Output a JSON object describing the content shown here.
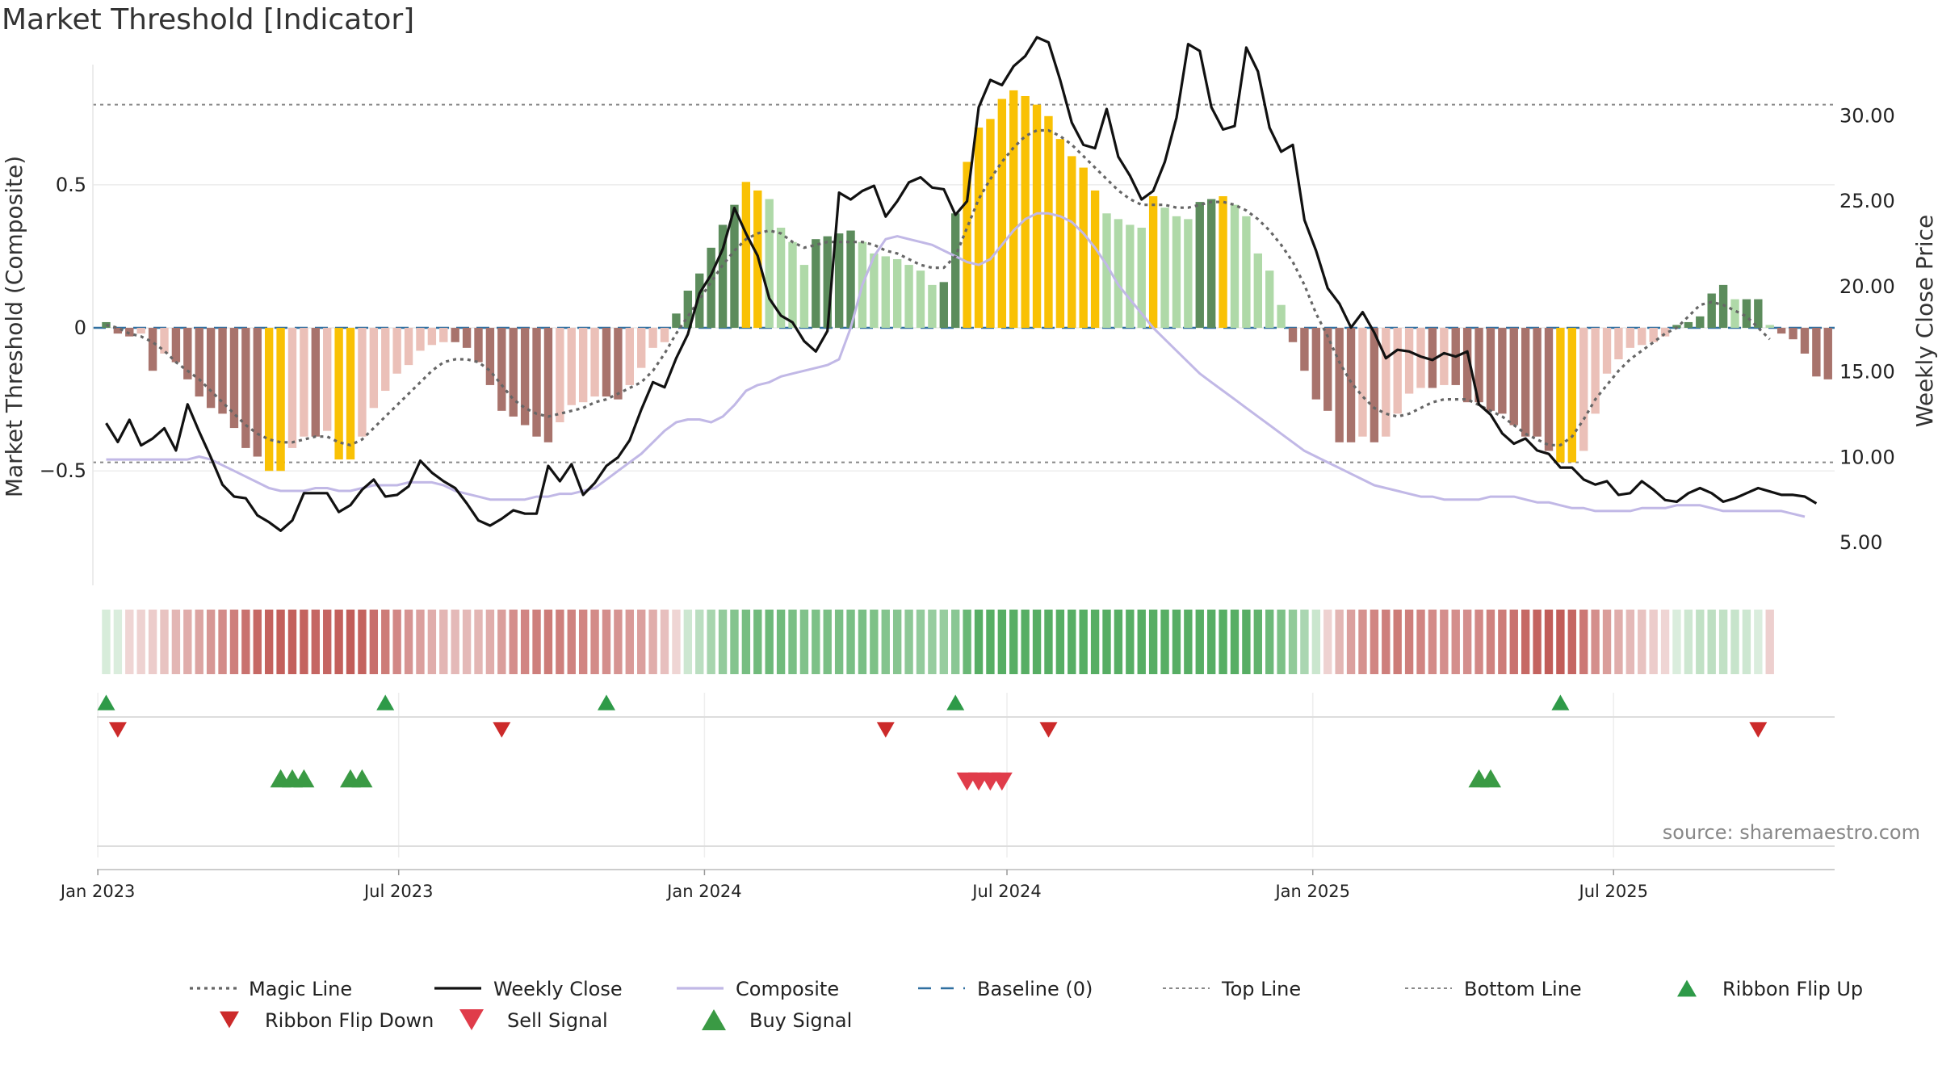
{
  "chart_data": {
    "type": "bar",
    "title": "Market Threshold [Indicator]",
    "ylabel_left": "Market Threshold (Composite)",
    "ylabel_right": "Weekly Close Price",
    "x_start": "2023-01-06",
    "x_step_days": 7,
    "ylim_left": [
      -0.9,
      0.92
    ],
    "ylim_right": [
      2.5,
      33
    ],
    "left_ticks": [
      0.5,
      0,
      -0.5
    ],
    "left_tick_labels": [
      "0.5",
      "0",
      "−0.5"
    ],
    "right_ticks": [
      30,
      25,
      20,
      15,
      10,
      5
    ],
    "right_tick_labels": [
      "30.00",
      "25.00",
      "20.00",
      "15.00",
      "10.00",
      "5.00"
    ],
    "x_ticks": [
      {
        "date": "2023-01-01",
        "label": "Jan 2023"
      },
      {
        "date": "2023-07-01",
        "label": "Jul 2023"
      },
      {
        "date": "2024-01-01",
        "label": "Jan 2024"
      },
      {
        "date": "2024-07-01",
        "label": "Jul 2024"
      },
      {
        "date": "2025-01-01",
        "label": "Jan 2025"
      },
      {
        "date": "2025-07-01",
        "label": "Jul 2025"
      }
    ],
    "reference_lines": {
      "top": 0.78,
      "bottom": -0.47,
      "baseline": 0
    },
    "histogram": [
      0.02,
      -0.02,
      -0.03,
      -0.02,
      -0.15,
      -0.09,
      -0.12,
      -0.18,
      -0.24,
      -0.28,
      -0.3,
      -0.35,
      -0.42,
      -0.45,
      -0.5,
      -0.5,
      -0.42,
      -0.38,
      -0.38,
      -0.36,
      -0.46,
      -0.46,
      -0.38,
      -0.28,
      -0.22,
      -0.16,
      -0.13,
      -0.08,
      -0.06,
      -0.05,
      -0.05,
      -0.07,
      -0.12,
      -0.2,
      -0.29,
      -0.31,
      -0.34,
      -0.38,
      -0.4,
      -0.33,
      -0.27,
      -0.26,
      -0.24,
      -0.24,
      -0.25,
      -0.2,
      -0.14,
      -0.07,
      -0.05,
      0.05,
      0.13,
      0.19,
      0.28,
      0.36,
      0.43,
      0.51,
      0.48,
      0.45,
      0.35,
      0.3,
      0.22,
      0.31,
      0.32,
      0.33,
      0.34,
      0.3,
      0.26,
      0.25,
      0.24,
      0.22,
      0.2,
      0.15,
      0.16,
      0.4,
      0.58,
      0.7,
      0.73,
      0.8,
      0.83,
      0.81,
      0.78,
      0.74,
      0.66,
      0.6,
      0.56,
      0.48,
      0.4,
      0.38,
      0.36,
      0.35,
      0.46,
      0.42,
      0.39,
      0.38,
      0.44,
      0.45,
      0.46,
      0.43,
      0.39,
      0.26,
      0.2,
      0.08,
      -0.05,
      -0.15,
      -0.25,
      -0.29,
      -0.4,
      -0.4,
      -0.38,
      -0.4,
      -0.38,
      -0.3,
      -0.23,
      -0.21,
      -0.21,
      -0.2,
      -0.2,
      -0.26,
      -0.26,
      -0.29,
      -0.3,
      -0.34,
      -0.38,
      -0.38,
      -0.43,
      -0.47,
      -0.47,
      -0.43,
      -0.3,
      -0.16,
      -0.11,
      -0.07,
      -0.06,
      -0.05,
      -0.03,
      0.01,
      0.02,
      0.04,
      0.12,
      0.15,
      0.1,
      0.1,
      0.1,
      0.01,
      -0.02,
      -0.04,
      -0.09,
      -0.17,
      -0.18
    ],
    "magic_line": [
      0.01,
      0.0,
      -0.02,
      -0.03,
      -0.05,
      -0.08,
      -0.12,
      -0.15,
      -0.18,
      -0.22,
      -0.26,
      -0.3,
      -0.34,
      -0.37,
      -0.39,
      -0.4,
      -0.4,
      -0.39,
      -0.38,
      -0.38,
      -0.4,
      -0.41,
      -0.39,
      -0.35,
      -0.31,
      -0.27,
      -0.23,
      -0.19,
      -0.15,
      -0.12,
      -0.11,
      -0.11,
      -0.12,
      -0.15,
      -0.2,
      -0.25,
      -0.28,
      -0.3,
      -0.31,
      -0.3,
      -0.29,
      -0.28,
      -0.26,
      -0.25,
      -0.23,
      -0.21,
      -0.19,
      -0.15,
      -0.09,
      -0.02,
      0.04,
      0.1,
      0.16,
      0.22,
      0.27,
      0.31,
      0.33,
      0.34,
      0.33,
      0.3,
      0.28,
      0.29,
      0.3,
      0.3,
      0.3,
      0.3,
      0.29,
      0.27,
      0.26,
      0.24,
      0.22,
      0.21,
      0.21,
      0.25,
      0.35,
      0.45,
      0.52,
      0.58,
      0.63,
      0.67,
      0.69,
      0.69,
      0.67,
      0.64,
      0.6,
      0.56,
      0.52,
      0.48,
      0.45,
      0.43,
      0.43,
      0.43,
      0.42,
      0.42,
      0.43,
      0.44,
      0.44,
      0.43,
      0.41,
      0.38,
      0.34,
      0.29,
      0.23,
      0.15,
      0.05,
      -0.03,
      -0.12,
      -0.19,
      -0.24,
      -0.28,
      -0.3,
      -0.31,
      -0.3,
      -0.28,
      -0.26,
      -0.25,
      -0.25,
      -0.25,
      -0.27,
      -0.29,
      -0.31,
      -0.34,
      -0.37,
      -0.39,
      -0.41,
      -0.41,
      -0.38,
      -0.32,
      -0.25,
      -0.2,
      -0.15,
      -0.11,
      -0.08,
      -0.05,
      -0.02,
      0.0,
      0.04,
      0.08,
      0.09,
      0.08,
      0.06,
      0.04,
      0.0,
      -0.04
    ],
    "weekly_close": [
      12.0,
      10.9,
      12.2,
      10.7,
      11.1,
      11.7,
      10.4,
      13.1,
      11.5,
      10.0,
      8.4,
      7.7,
      7.6,
      6.6,
      6.2,
      5.7,
      6.3,
      7.9,
      7.9,
      7.9,
      6.8,
      7.2,
      8.1,
      8.7,
      7.7,
      7.8,
      8.3,
      9.8,
      9.1,
      8.6,
      8.2,
      7.3,
      6.3,
      6.0,
      6.4,
      6.9,
      6.7,
      6.7,
      9.5,
      8.6,
      9.6,
      7.8,
      8.5,
      9.5,
      10.0,
      11.0,
      12.8,
      14.4,
      14.1,
      15.8,
      17.2,
      19.6,
      20.7,
      22.2,
      24.6,
      23.1,
      21.8,
      19.3,
      18.3,
      17.9,
      16.8,
      16.2,
      17.4,
      25.5,
      25.1,
      25.6,
      25.9,
      24.1,
      25.0,
      26.1,
      26.4,
      25.8,
      25.7,
      24.2,
      25.0,
      30.5,
      32.1,
      31.8,
      32.9,
      33.5,
      34.6,
      34.3,
      32.1,
      29.6,
      28.3,
      28.1,
      30.4,
      27.6,
      26.5,
      25.1,
      25.6,
      27.3,
      29.9,
      34.2,
      33.8,
      30.5,
      29.2,
      29.4,
      34.0,
      32.6,
      29.3,
      27.9,
      28.3,
      23.9,
      22.1,
      19.9,
      19.0,
      17.6,
      18.5,
      17.3,
      15.8,
      16.3,
      16.2,
      15.9,
      15.7,
      16.1,
      15.9,
      16.2,
      13.1,
      12.5,
      11.4,
      10.8,
      11.1,
      10.4,
      10.2,
      9.4,
      9.4,
      8.7,
      8.4,
      8.6,
      7.8,
      7.9,
      8.6,
      8.1,
      7.5,
      7.4,
      7.9,
      8.2,
      7.9,
      7.4,
      7.6,
      7.9,
      8.2,
      8.0,
      7.8,
      7.8,
      7.7,
      7.3
    ],
    "composite": [
      -0.46,
      -0.46,
      -0.46,
      -0.46,
      -0.46,
      -0.46,
      -0.46,
      -0.46,
      -0.45,
      -0.46,
      -0.48,
      -0.5,
      -0.52,
      -0.54,
      -0.56,
      -0.57,
      -0.57,
      -0.57,
      -0.56,
      -0.56,
      -0.57,
      -0.57,
      -0.56,
      -0.55,
      -0.55,
      -0.55,
      -0.54,
      -0.54,
      -0.54,
      -0.55,
      -0.57,
      -0.58,
      -0.59,
      -0.6,
      -0.6,
      -0.6,
      -0.6,
      -0.59,
      -0.59,
      -0.58,
      -0.58,
      -0.57,
      -0.56,
      -0.53,
      -0.5,
      -0.47,
      -0.44,
      -0.4,
      -0.36,
      -0.33,
      -0.32,
      -0.32,
      -0.33,
      -0.31,
      -0.27,
      -0.22,
      -0.2,
      -0.19,
      -0.17,
      -0.16,
      -0.15,
      -0.14,
      -0.13,
      -0.11,
      0.0,
      0.15,
      0.25,
      0.31,
      0.32,
      0.31,
      0.3,
      0.29,
      0.27,
      0.25,
      0.23,
      0.22,
      0.24,
      0.29,
      0.34,
      0.38,
      0.4,
      0.4,
      0.39,
      0.37,
      0.33,
      0.28,
      0.22,
      0.15,
      0.1,
      0.05,
      0.0,
      -0.04,
      -0.08,
      -0.12,
      -0.16,
      -0.19,
      -0.22,
      -0.25,
      -0.28,
      -0.31,
      -0.34,
      -0.37,
      -0.4,
      -0.43,
      -0.45,
      -0.47,
      -0.49,
      -0.51,
      -0.53,
      -0.55,
      -0.56,
      -0.57,
      -0.58,
      -0.59,
      -0.59,
      -0.6,
      -0.6,
      -0.6,
      -0.6,
      -0.59,
      -0.59,
      -0.59,
      -0.6,
      -0.61,
      -0.61,
      -0.62,
      -0.63,
      -0.63,
      -0.64,
      -0.64,
      -0.64,
      -0.64,
      -0.63,
      -0.63,
      -0.63,
      -0.62,
      -0.62,
      -0.62,
      -0.63,
      -0.64,
      -0.64,
      -0.64,
      -0.64,
      -0.64,
      -0.64,
      -0.65,
      -0.66
    ],
    "ribbon_flip_up": [
      "2023-01-06",
      "2023-06-23",
      "2023-11-03",
      "2024-05-31",
      "2025-05-30"
    ],
    "ribbon_flip_down": [
      "2023-01-13",
      "2023-09-01",
      "2024-04-19",
      "2024-07-26",
      "2025-09-26"
    ],
    "buy_signal": [
      "2023-04-21",
      "2023-04-28",
      "2023-05-05",
      "2023-06-02",
      "2023-06-09",
      "2025-04-11",
      "2025-04-18"
    ],
    "sell_signal": [
      "2024-06-07",
      "2024-06-14",
      "2024-06-21",
      "2024-06-28"
    ],
    "legend": [
      {
        "label": "Magic Line",
        "kind": "dotted",
        "color": "#666666"
      },
      {
        "label": "Weekly Close",
        "kind": "solid",
        "color": "#111111"
      },
      {
        "label": "Composite",
        "kind": "solid",
        "color": "#c1b8e6"
      },
      {
        "label": "Baseline (0)",
        "kind": "dashed",
        "color": "#2f6fa0"
      },
      {
        "label": "Top Line",
        "kind": "dotted-light",
        "color": "#888888"
      },
      {
        "label": "Bottom Line",
        "kind": "dotted-light",
        "color": "#888888"
      },
      {
        "label": "Ribbon Flip Up",
        "kind": "tri-up",
        "color": "#2e9a48"
      },
      {
        "label": "Ribbon Flip Down",
        "kind": "tri-down",
        "color": "#cc2a2a"
      },
      {
        "label": "Sell Signal",
        "kind": "tri-down-big",
        "color": "#e03c4a"
      },
      {
        "label": "Buy Signal",
        "kind": "tri-up-big",
        "color": "#3a9a44"
      }
    ],
    "legend_placement": "bottom",
    "grid": true,
    "source": "source: sharemaestro.com",
    "colors": {
      "bull_strong": "#5c8c5c",
      "bull_weak": "#afd9a8",
      "bear_strong": "#a8736c",
      "bear_weak": "#ebc0b8",
      "extreme": "#f9c104"
    }
  }
}
